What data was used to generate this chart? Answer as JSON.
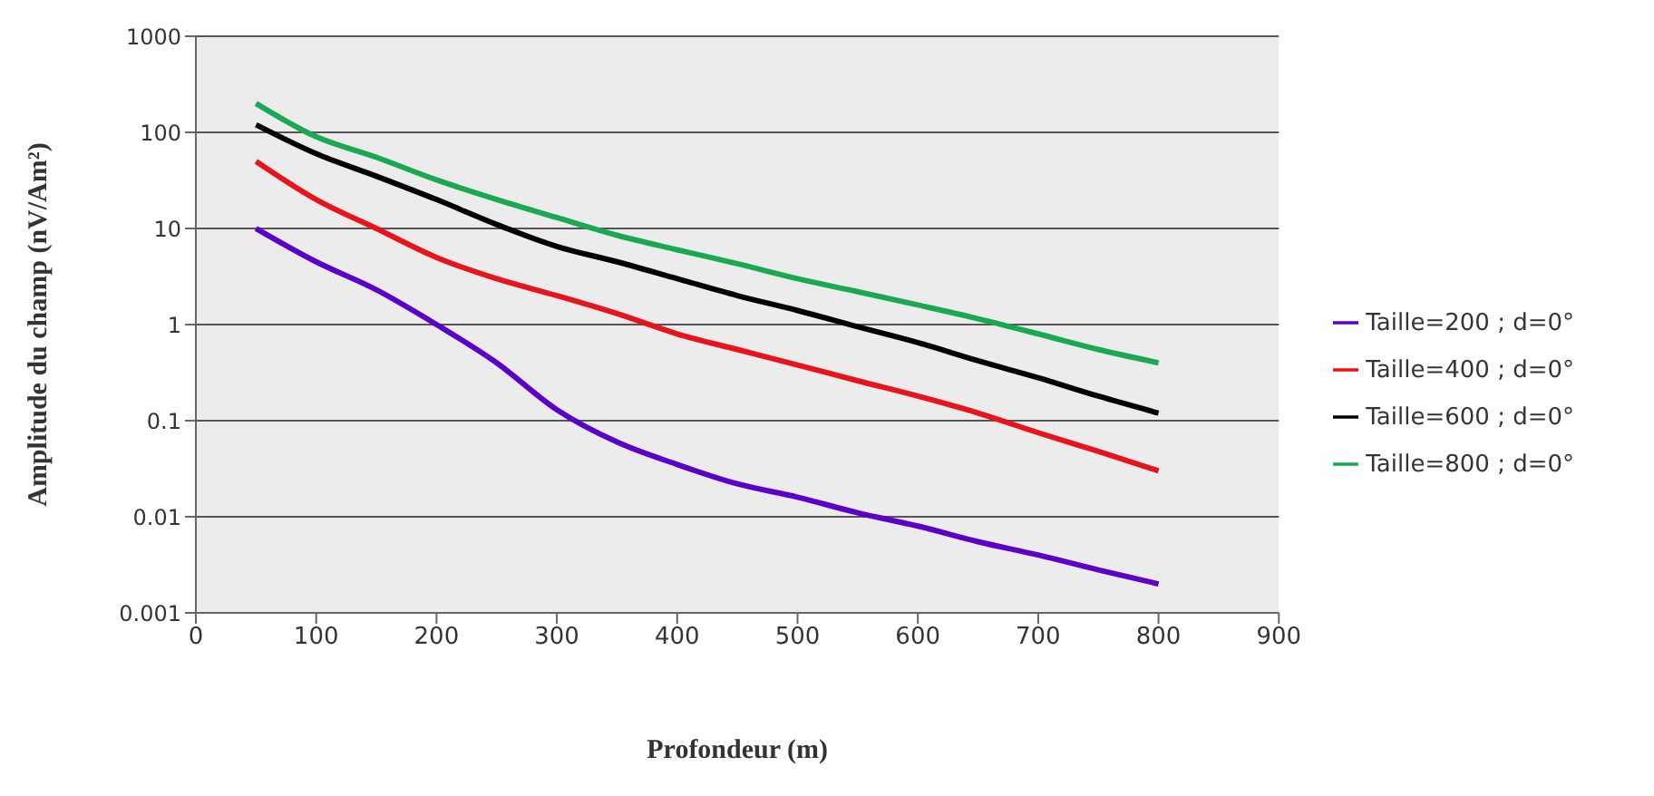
{
  "chart_data": {
    "type": "line",
    "xlabel": "Profondeur (m)",
    "ylabel": "Amplitude du champ (nV/Am²)",
    "x": [
      50,
      100,
      150,
      200,
      250,
      300,
      350,
      400,
      450,
      500,
      550,
      600,
      650,
      700,
      750,
      800
    ],
    "series": [
      {
        "name": "Taille=200 ; d=0°",
        "color": "#5b00c8",
        "values": [
          10,
          4.5,
          2.3,
          1.0,
          0.4,
          0.13,
          0.06,
          0.035,
          0.022,
          0.016,
          0.011,
          0.008,
          0.0055,
          0.004,
          0.0028,
          0.002
        ]
      },
      {
        "name": "Taille=400 ; d=0°",
        "color": "#e8141c",
        "values": [
          50,
          20,
          10,
          5,
          3,
          2,
          1.3,
          0.8,
          0.55,
          0.38,
          0.26,
          0.18,
          0.12,
          0.075,
          0.048,
          0.03
        ]
      },
      {
        "name": "Taille=600 ; d=0°",
        "color": "#000000",
        "values": [
          120,
          60,
          35,
          20,
          11,
          6.5,
          4.5,
          3,
          2.0,
          1.4,
          0.95,
          0.65,
          0.42,
          0.28,
          0.18,
          0.12
        ]
      },
      {
        "name": "Taille=800 ; d=0°",
        "color": "#1aa852",
        "values": [
          200,
          90,
          55,
          32,
          20,
          13,
          8.5,
          6,
          4.3,
          3,
          2.2,
          1.6,
          1.15,
          0.8,
          0.55,
          0.4
        ]
      }
    ],
    "xlim": [
      0,
      900
    ],
    "xticks": [
      0,
      100,
      200,
      300,
      400,
      500,
      600,
      700,
      800,
      900
    ],
    "ylim": [
      0.001,
      1000
    ],
    "yticks": [
      0.001,
      0.01,
      0.1,
      1,
      10,
      100,
      1000
    ],
    "log": "y",
    "grid": "y",
    "legend": "right",
    "marker": "none",
    "line_style": "solid"
  }
}
